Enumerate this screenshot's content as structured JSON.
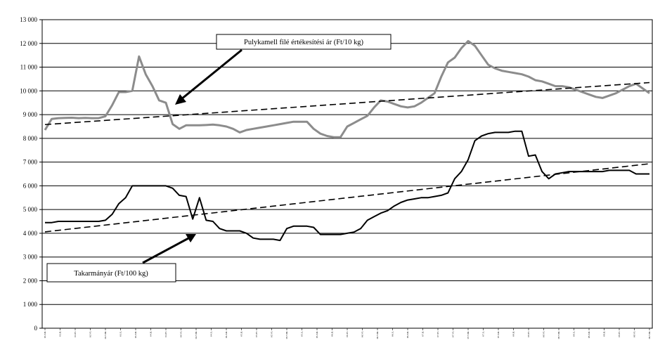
{
  "chart_data": {
    "type": "line",
    "title": "",
    "xlabel": "",
    "ylabel": "",
    "ylim": [
      0,
      13000
    ],
    "yticks": [
      0,
      1000,
      2000,
      3000,
      4000,
      5000,
      6000,
      7000,
      8000,
      9000,
      10000,
      11000,
      12000,
      13000
    ],
    "ytick_labels": [
      "0",
      "1 000",
      "2 000",
      "3 000",
      "4 000",
      "5 000",
      "6 000",
      "7 000",
      "8 000",
      "9 000",
      "10 000",
      "11 000",
      "12 000",
      "13 000"
    ],
    "grid": "horizontal",
    "x_count": 91,
    "x_tick_labels": [
      "03.XII.",
      "03.II.",
      "03.IV.",
      "03.VI.",
      "03.VIII.",
      "03.X.",
      "03.XII.",
      "04.II.",
      "04.IV.",
      "04.VI.",
      "04.VIII.",
      "04.X.",
      "04.XII.",
      "05.II.",
      "05.IV.",
      "05.VI.",
      "05.VIII.",
      "05.X.",
      "05.XII.",
      "06.II.",
      "06.IV.",
      "06.VI.",
      "06.VIII.",
      "06.X.",
      "06.XII.",
      "07.II.",
      "07.IV.",
      "07.VI.",
      "07.VIII.",
      "07.X.",
      "07.XII.",
      "08.II.",
      "08.IV.",
      "08.VI.",
      "08.VIII.",
      "08.X.",
      "08.XII.",
      "09.II.",
      "09.IV.",
      "09.VI.",
      "09.VIII."
    ],
    "series": [
      {
        "name": "Pulykamell filé értékesítési ár (Ft/10 kg)",
        "color": "#8c8c8c",
        "values": [
          8350,
          8820,
          8850,
          8860,
          8870,
          8850,
          8860,
          8850,
          8850,
          8930,
          9400,
          9950,
          9950,
          10000,
          11450,
          10700,
          10200,
          9600,
          9500,
          8600,
          8400,
          8550,
          8550,
          8550,
          8560,
          8580,
          8550,
          8500,
          8400,
          8250,
          8350,
          8400,
          8450,
          8500,
          8550,
          8600,
          8650,
          8700,
          8700,
          8700,
          8400,
          8200,
          8100,
          8050,
          8050,
          8500,
          8650,
          8800,
          8950,
          9300,
          9600,
          9550,
          9450,
          9350,
          9300,
          9350,
          9500,
          9700,
          9900,
          10600,
          11200,
          11400,
          11800,
          12100,
          11900,
          11500,
          11100,
          10950,
          10850,
          10800,
          10750,
          10700,
          10600,
          10450,
          10400,
          10300,
          10200,
          10200,
          10150,
          10050,
          9950,
          9850,
          9750,
          9700,
          9800,
          9900,
          10050,
          10200,
          10300,
          10100,
          9900
        ]
      },
      {
        "name": "Takarmányár (Ft/100 kg)",
        "color": "#000000",
        "values": [
          4450,
          4450,
          4500,
          4500,
          4500,
          4500,
          4500,
          4500,
          4500,
          4550,
          4800,
          5250,
          5500,
          6000,
          6000,
          6000,
          6000,
          6000,
          6000,
          5900,
          5600,
          5550,
          4600,
          5500,
          4550,
          4500,
          4200,
          4100,
          4100,
          4100,
          4000,
          3800,
          3750,
          3750,
          3750,
          3700,
          4200,
          4300,
          4300,
          4300,
          4250,
          3950,
          3950,
          3950,
          3950,
          4000,
          4050,
          4200,
          4550,
          4700,
          4850,
          4950,
          5150,
          5300,
          5400,
          5450,
          5500,
          5500,
          5550,
          5600,
          5700,
          6300,
          6600,
          7100,
          7900,
          8100,
          8200,
          8250,
          8250,
          8250,
          8300,
          8300,
          7250,
          7300,
          6600,
          6300,
          6500,
          6550,
          6600,
          6600,
          6600,
          6600,
          6600,
          6600,
          6650,
          6650,
          6650,
          6650,
          6500,
          6500,
          6500
        ]
      },
      {
        "name": "",
        "kind": "trend",
        "style": "dashed",
        "color": "#000000",
        "values_start_end": [
          8580,
          10350
        ]
      },
      {
        "name": "",
        "kind": "trend",
        "style": "dashed",
        "color": "#000000",
        "values_start_end": [
          4060,
          6930
        ]
      }
    ],
    "annotations": [
      {
        "text": "Pulykamell filé értékesítési ár (Ft/10 kg)"
      },
      {
        "text": "Takarmányár (Ft/100 kg)"
      }
    ]
  }
}
